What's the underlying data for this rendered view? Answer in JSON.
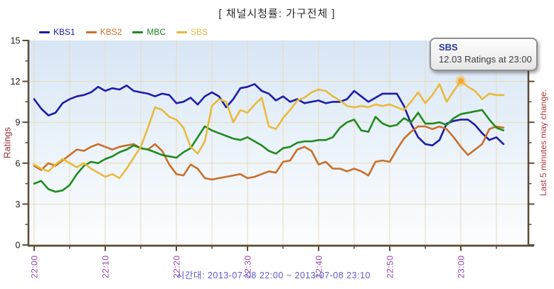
{
  "title": "[ 채널시청률: 가구전체 ]",
  "tooltip": {
    "title": "SBS",
    "text": "12.03 Ratings at 23:00"
  },
  "footer": {
    "caption": "시간대: 2013-07-08 22:00 ~ 2013-07-08 23:10"
  },
  "right_note": "Last 5 minutes may change.",
  "colors": {
    "axis": "#5c4a36",
    "grid": "#e7dbb9",
    "x_tick_label": "#9540b5",
    "y_tick_label": "#1c1c1c",
    "y_axis_title": "#993333",
    "right_note": "#b23b3b",
    "caption": "#5b5bd0",
    "tooltip_title": "#26379c",
    "highlight_dot": "#faa82c",
    "plot_bg_top": "#d8e6f5",
    "plot_bg_bottom": "#fcfdfe"
  },
  "chart_data": {
    "type": "line",
    "title": "[ 채널시청률: 가구전체 ]",
    "ylabel": "Ratings",
    "ylim": [
      0,
      15
    ],
    "y_major_step": 3,
    "y_minor_step": 1.5,
    "y_tick_labels": [
      "0",
      "3",
      "6",
      "9",
      "12",
      "15"
    ],
    "x_unit": "minutes after 22:00, 2013-07-08",
    "x_step_minutes": 1,
    "x_minor_grid_minutes": 5,
    "x_ticks": [
      {
        "t": 0,
        "label": "22:00"
      },
      {
        "t": 10,
        "label": "22:10"
      },
      {
        "t": 20,
        "label": "22:20"
      },
      {
        "t": 30,
        "label": "22:30"
      },
      {
        "t": 40,
        "label": "22:40"
      },
      {
        "t": 50,
        "label": "22:50"
      },
      {
        "t": 60,
        "label": "23:00"
      }
    ],
    "x_minor_ticks": [
      5,
      15,
      25,
      35,
      45,
      55,
      65
    ],
    "legend_position": "top-left",
    "grid": true,
    "series": [
      {
        "name": "KBS1",
        "color": "#1c1ca8",
        "values": [
          10.7,
          10.0,
          9.5,
          9.7,
          10.4,
          10.7,
          10.9,
          11.0,
          11.2,
          11.6,
          11.3,
          11.5,
          11.4,
          11.7,
          11.3,
          11.2,
          11.1,
          10.9,
          11.1,
          11.0,
          10.4,
          10.5,
          10.8,
          10.3,
          10.9,
          11.2,
          10.9,
          10.1,
          10.7,
          11.5,
          11.6,
          11.8,
          11.3,
          11.1,
          10.6,
          10.9,
          10.5,
          10.7,
          10.4,
          10.5,
          10.6,
          10.4,
          10.5,
          10.5,
          10.7,
          11.3,
          10.9,
          10.5,
          10.8,
          11.1,
          11.1,
          11.1,
          10.2,
          8.9,
          7.9,
          7.4,
          7.3,
          7.7,
          8.9,
          9.1,
          9.2,
          9.2,
          8.8,
          8.2,
          7.7,
          7.9,
          7.4
        ]
      },
      {
        "name": "KBS2",
        "color": "#c96f2a",
        "values": [
          5.8,
          5.5,
          6.0,
          5.8,
          6.2,
          6.6,
          7.0,
          6.9,
          7.2,
          7.4,
          7.2,
          7.0,
          7.2,
          7.3,
          7.4,
          7.1,
          7.0,
          7.4,
          6.9,
          5.9,
          5.2,
          5.1,
          5.9,
          5.6,
          4.9,
          4.8,
          4.9,
          5.0,
          5.1,
          5.2,
          4.9,
          5.0,
          5.2,
          5.4,
          5.3,
          6.1,
          6.2,
          7.0,
          7.2,
          6.9,
          5.9,
          6.1,
          5.6,
          5.6,
          5.4,
          5.6,
          5.4,
          5.1,
          6.1,
          6.2,
          6.1,
          7.0,
          7.8,
          8.3,
          8.7,
          8.7,
          8.5,
          8.7,
          8.5,
          7.9,
          7.2,
          6.6,
          7.0,
          7.4,
          8.5,
          8.7,
          8.6
        ]
      },
      {
        "name": "MBC",
        "color": "#1f8a1f",
        "values": [
          4.5,
          4.7,
          4.1,
          3.9,
          4.0,
          4.4,
          5.2,
          5.8,
          6.1,
          6.0,
          6.3,
          6.5,
          6.8,
          7.0,
          7.3,
          7.1,
          7.0,
          6.8,
          6.6,
          6.5,
          6.4,
          6.8,
          7.1,
          7.9,
          8.7,
          8.4,
          8.2,
          8.0,
          7.8,
          7.7,
          7.9,
          7.6,
          7.3,
          6.9,
          6.7,
          7.1,
          7.2,
          7.5,
          7.6,
          7.6,
          7.7,
          7.7,
          7.9,
          8.6,
          9.0,
          9.2,
          8.4,
          8.3,
          9.4,
          8.9,
          8.7,
          8.8,
          9.3,
          9.0,
          9.7,
          8.9,
          8.9,
          9.0,
          8.8,
          9.3,
          9.6,
          9.7,
          9.8,
          9.9,
          9.2,
          8.6,
          8.4
        ]
      },
      {
        "name": "SBS",
        "color": "#e9ba3a",
        "values": [
          5.9,
          5.6,
          5.4,
          5.9,
          6.3,
          6.0,
          5.7,
          6.0,
          5.6,
          5.3,
          5.0,
          5.2,
          4.9,
          5.6,
          6.4,
          7.2,
          8.6,
          10.1,
          9.9,
          9.4,
          9.2,
          8.6,
          7.2,
          6.7,
          7.6,
          10.2,
          10.7,
          10.5,
          9.0,
          9.9,
          9.7,
          10.3,
          10.8,
          8.7,
          8.5,
          9.3,
          9.9,
          10.6,
          10.8,
          11.2,
          11.4,
          11.3,
          10.9,
          10.6,
          10.2,
          10.1,
          10.2,
          10.1,
          10.3,
          10.2,
          10.3,
          10.1,
          9.9,
          10.5,
          11.2,
          10.4,
          11.0,
          11.8,
          10.5,
          11.3,
          12.03,
          11.6,
          11.3,
          10.7,
          11.1,
          11.0,
          11.0
        ]
      }
    ],
    "highlight": {
      "series": "SBS",
      "minute": 60,
      "time": "23:00",
      "value": 12.03
    }
  }
}
